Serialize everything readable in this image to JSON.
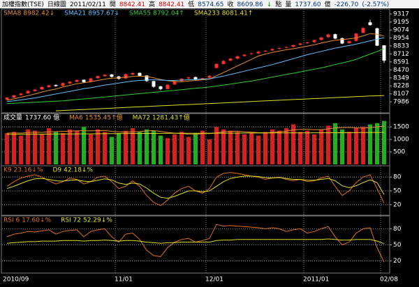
{
  "header": [
    {
      "text": "加權指數(TSE)",
      "color": "#000000"
    },
    {
      "text": "日線圖",
      "color": "#000000"
    },
    {
      "text": "2011/02/11",
      "color": "#000000"
    },
    {
      "text": "開",
      "color": "#000000"
    },
    {
      "text": "8842.41",
      "color": "#e00000"
    },
    {
      "text": "高",
      "color": "#000000"
    },
    {
      "text": "8842.41",
      "color": "#e00000"
    },
    {
      "text": "低",
      "color": "#000000"
    },
    {
      "text": "8574.65",
      "color": "#003080"
    },
    {
      "text": "收",
      "color": "#000000"
    },
    {
      "text": "8609.86",
      "color": "#003080"
    },
    {
      "text": "↓",
      "color": "#009000"
    },
    {
      "text": "點",
      "color": "#000000"
    },
    {
      "text": "量",
      "color": "#000000"
    },
    {
      "text": "1737.60",
      "color": "#003080"
    },
    {
      "text": "億",
      "color": "#000000"
    },
    {
      "text": "-226.70",
      "color": "#003080"
    },
    {
      "text": "(-2.57%)",
      "color": "#003080"
    }
  ],
  "chart_data": [
    {
      "type": "candlestick",
      "up_color": "#ff3030",
      "down_color": "#ffffff",
      "grid": false,
      "ylim": [
        7840,
        9360
      ],
      "yticks": [
        9317,
        9195,
        9074,
        8954,
        8833,
        8712,
        8591,
        8470,
        8349,
        8228,
        8107,
        7986
      ],
      "open": [
        8020,
        8050,
        8090,
        8115,
        8150,
        8175,
        8210,
        8240,
        8230,
        8265,
        8290,
        8320,
        8290,
        8345,
        8375,
        8400,
        8370,
        8340,
        8400,
        8425,
        8385,
        8300,
        8220,
        8180,
        8250,
        8300,
        8340,
        8360,
        8330,
        8350,
        8500,
        8560,
        8610,
        8640,
        8680,
        8710,
        8720,
        8750,
        8765,
        8790,
        8805,
        8820,
        8850,
        8875,
        8890,
        8925,
        8965,
        9010,
        8950,
        8875,
        8910,
        9030,
        9190,
        9100,
        8842
      ],
      "high": [
        8060,
        8095,
        8125,
        8160,
        8185,
        8220,
        8245,
        8250,
        8280,
        8300,
        8330,
        8325,
        8350,
        8385,
        8405,
        8410,
        8380,
        8415,
        8435,
        8430,
        8390,
        8305,
        8230,
        8255,
        8305,
        8345,
        8365,
        8370,
        8350,
        8390,
        8570,
        8620,
        8650,
        8690,
        8710,
        8730,
        8760,
        8770,
        8795,
        8810,
        8825,
        8855,
        8880,
        8895,
        8930,
        8975,
        9020,
        9020,
        8960,
        8915,
        9030,
        9120,
        9230,
        9110,
        8842
      ],
      "low": [
        8010,
        8040,
        8080,
        8105,
        8140,
        8165,
        8200,
        8215,
        8220,
        8255,
        8280,
        8275,
        8280,
        8335,
        8365,
        8355,
        8320,
        8330,
        8390,
        8370,
        8290,
        8200,
        8160,
        8170,
        8240,
        8290,
        8330,
        8315,
        8320,
        8340,
        8490,
        8550,
        8600,
        8630,
        8670,
        8700,
        8710,
        8740,
        8755,
        8780,
        8795,
        8810,
        8840,
        8865,
        8880,
        8915,
        8955,
        8935,
        8860,
        8865,
        8900,
        9020,
        9140,
        8830,
        8575
      ],
      "close": [
        8050,
        8085,
        8110,
        8150,
        8170,
        8210,
        8235,
        8225,
        8270,
        8290,
        8315,
        8285,
        8340,
        8375,
        8395,
        8365,
        8335,
        8405,
        8420,
        8380,
        8300,
        8215,
        8180,
        8245,
        8295,
        8335,
        8355,
        8325,
        8345,
        8380,
        8560,
        8605,
        8640,
        8675,
        8700,
        8720,
        8745,
        8760,
        8785,
        8800,
        8815,
        8845,
        8870,
        8885,
        8920,
        8960,
        9005,
        8945,
        8870,
        8905,
        9020,
        9105,
        9150,
        8837,
        8610
      ],
      "series": [
        {
          "name": "SMA8",
          "label": "8982.42↓",
          "color": "#e89030",
          "values": [
            8010,
            8030,
            8055,
            8080,
            8105,
            8135,
            8160,
            8180,
            8210,
            8235,
            8260,
            8275,
            8290,
            8310,
            8330,
            8345,
            8350,
            8360,
            8370,
            8375,
            8370,
            8350,
            8325,
            8305,
            8295,
            8290,
            8300,
            8310,
            8320,
            8330,
            8380,
            8430,
            8480,
            8530,
            8580,
            8630,
            8680,
            8710,
            8735,
            8755,
            8775,
            8790,
            8810,
            8830,
            8850,
            8875,
            8900,
            8920,
            8930,
            8940,
            8955,
            8985,
            9020,
            9010,
            8982.42
          ]
        },
        {
          "name": "SMA21",
          "label": "8957.67↓",
          "color": "#60c0ff",
          "values": [
            7990,
            8000,
            8015,
            8030,
            8045,
            8065,
            8085,
            8105,
            8125,
            8145,
            8165,
            8185,
            8200,
            8220,
            8240,
            8255,
            8270,
            8285,
            8300,
            8310,
            8315,
            8320,
            8315,
            8310,
            8310,
            8315,
            8320,
            8325,
            8330,
            8335,
            8355,
            8375,
            8400,
            8425,
            8450,
            8475,
            8500,
            8525,
            8550,
            8580,
            8610,
            8640,
            8670,
            8700,
            8725,
            8750,
            8775,
            8800,
            8820,
            8840,
            8860,
            8885,
            8910,
            8935,
            8957.67
          ]
        },
        {
          "name": "SMA55",
          "label": "8792.04↑",
          "color": "#30d030",
          "values": [
            7960,
            7965,
            7970,
            7975,
            7980,
            7985,
            7990,
            7995,
            8000,
            8010,
            8020,
            8030,
            8040,
            8050,
            8060,
            8070,
            8080,
            8090,
            8100,
            8110,
            8120,
            8130,
            8140,
            8150,
            8160,
            8170,
            8180,
            8190,
            8200,
            8210,
            8225,
            8240,
            8255,
            8270,
            8285,
            8300,
            8320,
            8340,
            8360,
            8380,
            8400,
            8420,
            8440,
            8460,
            8480,
            8500,
            8525,
            8550,
            8575,
            8600,
            8630,
            8670,
            8710,
            8750,
            8792.04
          ]
        },
        {
          "name": "SMA233",
          "label": "8081.41↑",
          "color": "#e0e020",
          "values": [
            null,
            null,
            null,
            null,
            null,
            null,
            null,
            7850,
            7855,
            7860,
            7865,
            7870,
            7875,
            7880,
            7885,
            7890,
            7895,
            7900,
            7905,
            7910,
            7915,
            7920,
            7925,
            7930,
            7935,
            7940,
            7945,
            7950,
            7955,
            7960,
            7965,
            7970,
            7975,
            7980,
            7985,
            7990,
            7995,
            8000,
            8005,
            8010,
            8015,
            8020,
            8025,
            8030,
            8035,
            8040,
            8045,
            8050,
            8055,
            8060,
            8065,
            8070,
            8075,
            8078,
            8081.41
          ]
        }
      ]
    },
    {
      "type": "bar",
      "name": "成交量",
      "label": "1737.60",
      "unit": "億",
      "up_color": "#d82020",
      "down_color": "#20b020",
      "grid": true,
      "ylim": [
        0,
        1950
      ],
      "yticks": [
        1500,
        1000,
        500
      ],
      "values": [
        1250,
        1300,
        1150,
        1400,
        1350,
        1200,
        1450,
        1300,
        1250,
        1400,
        1350,
        1500,
        1200,
        1400,
        1300,
        1100,
        1250,
        1350,
        1450,
        1300,
        1400,
        1350,
        1150,
        1050,
        1200,
        1300,
        1100,
        1250,
        1350,
        1000,
        1500,
        1400,
        1350,
        1300,
        1200,
        1250,
        1150,
        1300,
        1400,
        1350,
        1450,
        1600,
        1300,
        1350,
        1200,
        1400,
        1550,
        1650,
        1400,
        1300,
        1450,
        1500,
        1600,
        1650,
        1737.6
      ],
      "series": [
        {
          "name": "MA6",
          "label": "1535.45↑億",
          "color": "#e89030",
          "values": [
            1250,
            1260,
            1250,
            1270,
            1290,
            1280,
            1300,
            1310,
            1320,
            1330,
            1340,
            1350,
            1340,
            1350,
            1360,
            1320,
            1300,
            1290,
            1300,
            1310,
            1340,
            1350,
            1320,
            1280,
            1250,
            1240,
            1210,
            1200,
            1230,
            1230,
            1260,
            1300,
            1320,
            1330,
            1300,
            1290,
            1270,
            1260,
            1280,
            1300,
            1330,
            1380,
            1400,
            1400,
            1390,
            1390,
            1420,
            1460,
            1470,
            1480,
            1460,
            1450,
            1470,
            1500,
            1535.45
          ]
        },
        {
          "name": "MA72",
          "label": "1281.43↑億",
          "color": "#e0e020",
          "values": [
            1200,
            1202,
            1204,
            1206,
            1208,
            1210,
            1212,
            1214,
            1216,
            1218,
            1220,
            1222,
            1224,
            1226,
            1228,
            1230,
            1232,
            1234,
            1236,
            1238,
            1240,
            1241,
            1242,
            1243,
            1244,
            1245,
            1246,
            1247,
            1248,
            1249,
            1250,
            1251,
            1252,
            1253,
            1254,
            1255,
            1256,
            1257,
            1258,
            1259,
            1260,
            1261,
            1262,
            1263,
            1264,
            1265,
            1266,
            1267,
            1268,
            1269,
            1270,
            1272,
            1275,
            1278,
            1281.43
          ]
        }
      ]
    },
    {
      "type": "line",
      "grid": true,
      "ylim": [
        0,
        100
      ],
      "yticks": [
        80,
        50,
        20
      ],
      "series": [
        {
          "name": "K9",
          "label": "23.16↓%",
          "color": "#e07020",
          "values": [
            60,
            70,
            78,
            82,
            85,
            80,
            72,
            65,
            70,
            78,
            75,
            65,
            70,
            80,
            82,
            70,
            55,
            60,
            72,
            60,
            40,
            25,
            18,
            30,
            45,
            55,
            60,
            50,
            45,
            55,
            80,
            88,
            90,
            88,
            85,
            82,
            80,
            75,
            78,
            80,
            75,
            72,
            75,
            70,
            72,
            78,
            82,
            60,
            40,
            50,
            68,
            80,
            85,
            55,
            23.16
          ]
        },
        {
          "name": "D9",
          "label": "42.18↓%",
          "color": "#e0e020",
          "values": [
            55,
            60,
            66,
            72,
            76,
            77,
            75,
            72,
            71,
            73,
            74,
            71,
            70,
            73,
            76,
            74,
            67,
            64,
            67,
            65,
            56,
            45,
            36,
            34,
            38,
            44,
            50,
            50,
            48,
            50,
            60,
            70,
            77,
            80,
            82,
            82,
            81,
            79,
            78,
            79,
            77,
            75,
            75,
            73,
            73,
            75,
            77,
            72,
            61,
            57,
            61,
            68,
            74,
            68,
            42.18
          ]
        }
      ]
    },
    {
      "type": "line",
      "grid": true,
      "ylim": [
        0,
        100
      ],
      "yticks": [
        80,
        50,
        20
      ],
      "categories": [
        "2010/09",
        null,
        null,
        null,
        null,
        null,
        null,
        null,
        null,
        null,
        null,
        null,
        null,
        null,
        null,
        null,
        "11/01",
        null,
        null,
        null,
        null,
        null,
        null,
        null,
        null,
        null,
        null,
        null,
        null,
        "12/01",
        null,
        null,
        null,
        null,
        null,
        null,
        null,
        null,
        null,
        null,
        null,
        null,
        null,
        "2011/01",
        null,
        null,
        null,
        null,
        null,
        null,
        null,
        null,
        null,
        null,
        "02/08"
      ],
      "series": [
        {
          "name": "RSI 6",
          "label": "17.60↓%",
          "color": "#e07020",
          "values": [
            65,
            70,
            72,
            75,
            74,
            76,
            78,
            70,
            75,
            77,
            78,
            65,
            75,
            78,
            80,
            65,
            55,
            70,
            72,
            60,
            40,
            30,
            28,
            45,
            55,
            60,
            62,
            55,
            58,
            62,
            88,
            85,
            86,
            85,
            84,
            83,
            82,
            80,
            82,
            80,
            75,
            78,
            80,
            72,
            75,
            80,
            84,
            65,
            50,
            55,
            72,
            80,
            82,
            45,
            17.6
          ]
        },
        {
          "name": "RSI 72",
          "label": "52.29↓%",
          "color": "#e0e020",
          "values": [
            53,
            54,
            55,
            56,
            56,
            57,
            57,
            57,
            58,
            58,
            58,
            57,
            58,
            58,
            59,
            58,
            57,
            58,
            58,
            57,
            55,
            54,
            53,
            54,
            54,
            55,
            55,
            55,
            55,
            55,
            58,
            59,
            59,
            60,
            60,
            60,
            60,
            60,
            60,
            60,
            60,
            60,
            60,
            60,
            60,
            60,
            61,
            60,
            59,
            59,
            60,
            60,
            60,
            57,
            52.29
          ]
        }
      ]
    }
  ]
}
